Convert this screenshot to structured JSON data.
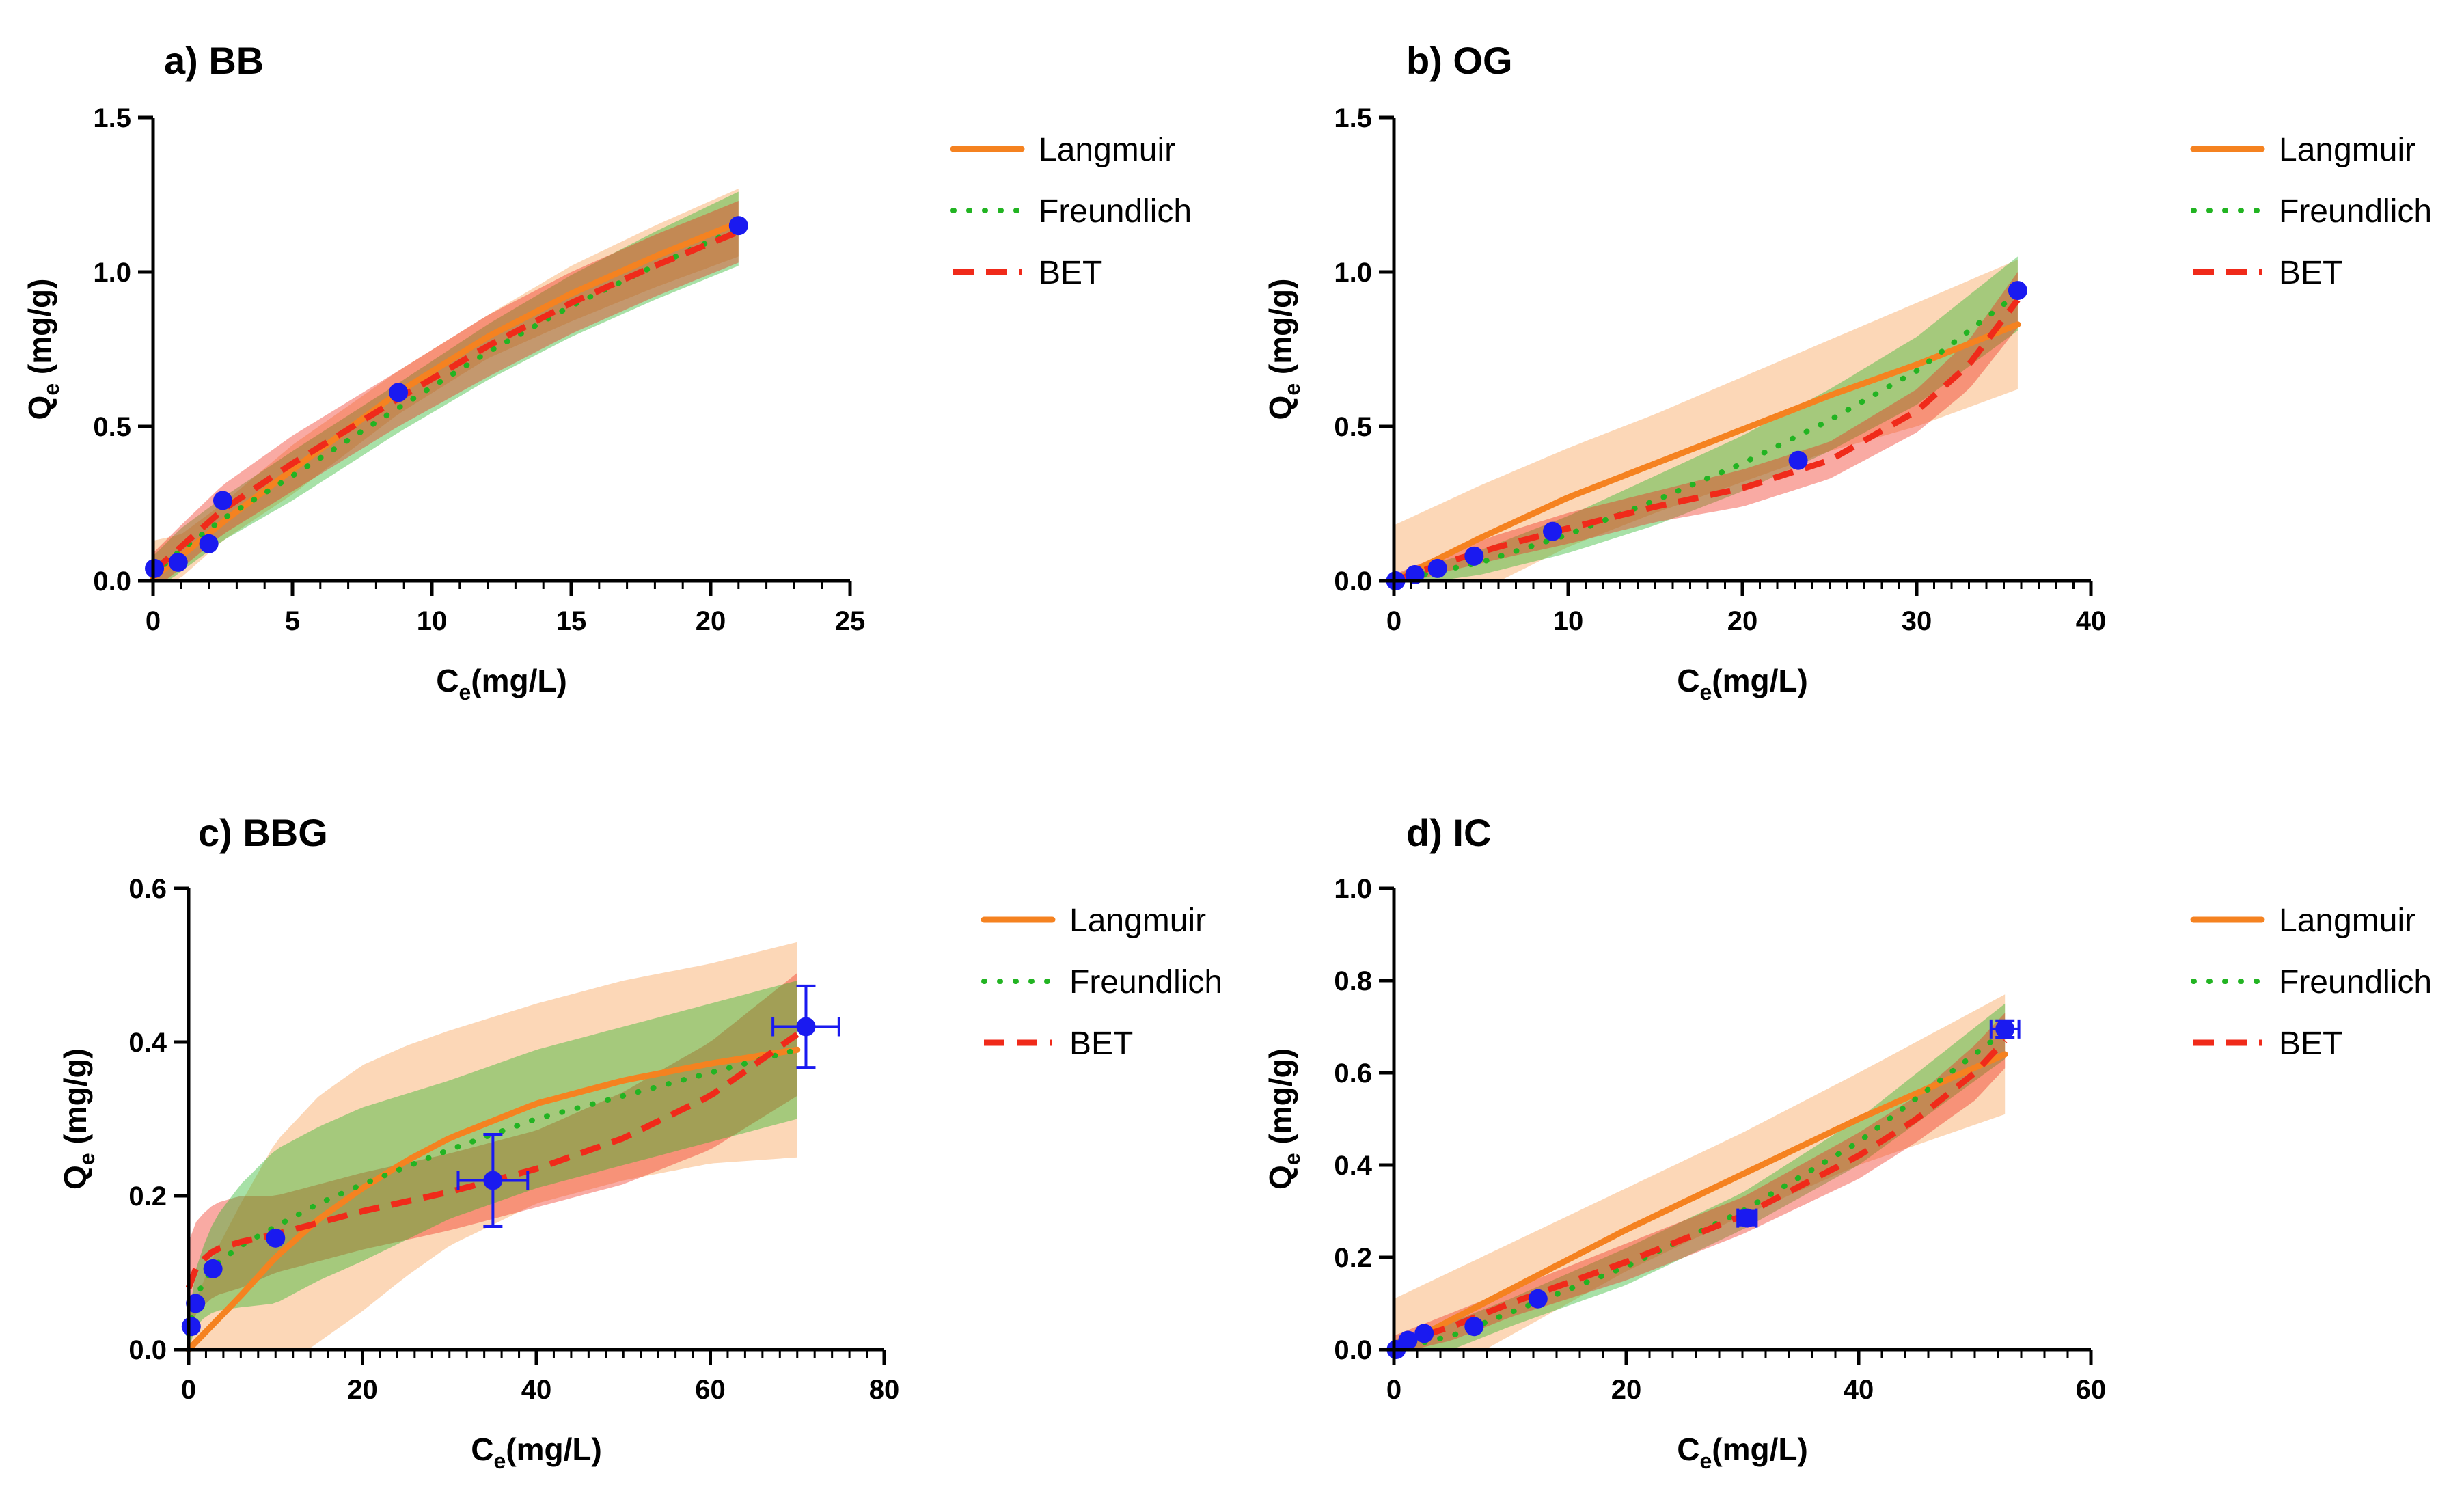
{
  "colors": {
    "langmuir": "#F58220",
    "freundlich": "#22B422",
    "bet": "#F02A1A",
    "points": "#1A1AF0"
  },
  "legend_labels": [
    "Langmuir",
    "Freundlich",
    "BET"
  ],
  "chart_data": [
    {
      "type": "scatter",
      "title": "a) BB",
      "xlabel_main": "C",
      "xlabel_sub": "e",
      "xlabel_unit": "(mg/L)",
      "ylabel_main": "Q",
      "ylabel_sub": "e",
      "ylabel_unit": " (mg/g)",
      "xlim": [
        0,
        25
      ],
      "ylim": [
        0,
        1.5
      ],
      "xticks": [
        0,
        5,
        10,
        15,
        20,
        25
      ],
      "yticks": [
        0,
        0.5,
        1.0,
        1.5
      ],
      "xtick_labels": [
        "0",
        "5",
        "10",
        "15",
        "20",
        "25"
      ],
      "ytick_labels": [
        "0.0",
        "0.5",
        "1.0",
        "1.5"
      ],
      "x_minor_step": 1,
      "points": [
        {
          "x": 0.05,
          "y": 0.04
        },
        {
          "x": 0.9,
          "y": 0.06
        },
        {
          "x": 2.0,
          "y": 0.12
        },
        {
          "x": 2.5,
          "y": 0.26
        },
        {
          "x": 8.8,
          "y": 0.61
        },
        {
          "x": 21.0,
          "y": 1.15
        }
      ],
      "fits": {
        "langmuir": {
          "x": [
            0,
            1,
            2.5,
            5,
            8.8,
            12,
            15,
            18,
            21
          ],
          "y": [
            0.01,
            0.08,
            0.19,
            0.36,
            0.61,
            0.79,
            0.93,
            1.05,
            1.16
          ],
          "band": [
            0.12,
            0.07,
            0.06,
            0.08,
            0.07,
            0.07,
            0.09,
            0.1,
            0.11
          ]
        },
        "freundlich": {
          "x": [
            0,
            1,
            2.5,
            5,
            8.8,
            12,
            15,
            18,
            21
          ],
          "y": [
            0.02,
            0.1,
            0.2,
            0.34,
            0.56,
            0.74,
            0.89,
            1.02,
            1.14
          ],
          "band": [
            0.06,
            0.07,
            0.07,
            0.08,
            0.08,
            0.09,
            0.1,
            0.11,
            0.12
          ]
        },
        "bet": {
          "x": [
            0,
            1,
            2.5,
            5,
            8.8,
            12,
            15,
            18,
            21
          ],
          "y": [
            0.03,
            0.11,
            0.23,
            0.38,
            0.59,
            0.76,
            0.9,
            1.02,
            1.13
          ],
          "band": [
            0.06,
            0.07,
            0.08,
            0.09,
            0.09,
            0.1,
            0.1,
            0.1,
            0.1
          ]
        }
      },
      "band_order": [
        "langmuir",
        "freundlich",
        "bet"
      ]
    },
    {
      "type": "scatter",
      "title": "b) OG",
      "xlabel_main": "C",
      "xlabel_sub": "e",
      "xlabel_unit": "(mg/L)",
      "ylabel_main": "Q",
      "ylabel_sub": "e",
      "ylabel_unit": " (mg/g)",
      "xlim": [
        0,
        40
      ],
      "ylim": [
        0,
        1.5
      ],
      "xticks": [
        0,
        10,
        20,
        30,
        40
      ],
      "yticks": [
        0,
        0.5,
        1.0,
        1.5
      ],
      "xtick_labels": [
        "0",
        "10",
        "20",
        "30",
        "40"
      ],
      "ytick_labels": [
        "0.0",
        "0.5",
        "1.0",
        "1.5"
      ],
      "x_minor_step": 1,
      "points": [
        {
          "x": 0.1,
          "y": 0.0
        },
        {
          "x": 1.2,
          "y": 0.02
        },
        {
          "x": 2.5,
          "y": 0.04
        },
        {
          "x": 4.6,
          "y": 0.08
        },
        {
          "x": 9.1,
          "y": 0.16
        },
        {
          "x": 23.2,
          "y": 0.39
        },
        {
          "x": 35.8,
          "y": 0.94
        }
      ],
      "fits": {
        "langmuir": {
          "x": [
            0,
            5,
            10,
            15,
            20,
            25,
            30,
            35.8
          ],
          "y": [
            0.0,
            0.14,
            0.27,
            0.38,
            0.49,
            0.6,
            0.7,
            0.83
          ],
          "band": [
            0.18,
            0.17,
            0.16,
            0.16,
            0.17,
            0.18,
            0.2,
            0.21
          ]
        },
        "freundlich": {
          "x": [
            0,
            5,
            10,
            15,
            20,
            25,
            30,
            35.8
          ],
          "y": [
            0.0,
            0.06,
            0.15,
            0.26,
            0.38,
            0.52,
            0.68,
            0.93
          ],
          "band": [
            0.02,
            0.04,
            0.06,
            0.08,
            0.09,
            0.1,
            0.11,
            0.12
          ]
        },
        "bet": {
          "x": [
            0,
            3,
            6,
            10,
            15,
            20,
            25,
            30,
            33,
            35.8
          ],
          "y": [
            0.0,
            0.06,
            0.11,
            0.17,
            0.24,
            0.3,
            0.39,
            0.55,
            0.7,
            0.91
          ],
          "band": [
            0.02,
            0.03,
            0.04,
            0.05,
            0.05,
            0.06,
            0.06,
            0.07,
            0.08,
            0.09
          ]
        }
      },
      "band_order": [
        "langmuir",
        "freundlich",
        "bet"
      ]
    },
    {
      "type": "scatter",
      "title": "c) BBG",
      "xlabel_main": "C",
      "xlabel_sub": "e",
      "xlabel_unit": "(mg/L)",
      "ylabel_main": "Q",
      "ylabel_sub": "e",
      "ylabel_unit": " (mg/g)",
      "xlim": [
        0,
        80
      ],
      "ylim": [
        0,
        0.6
      ],
      "xticks": [
        0,
        20,
        40,
        60,
        80
      ],
      "yticks": [
        0,
        0.2,
        0.4,
        0.6
      ],
      "xtick_labels": [
        "0",
        "20",
        "40",
        "60",
        "80"
      ],
      "ytick_labels": [
        "0.0",
        "0.2",
        "0.4",
        "0.6"
      ],
      "x_minor_step": 2,
      "points": [
        {
          "x": 0.3,
          "y": 0.03
        },
        {
          "x": 0.8,
          "y": 0.06
        },
        {
          "x": 2.8,
          "y": 0.105
        },
        {
          "x": 10.0,
          "y": 0.145
        },
        {
          "x": 35.0,
          "y": 0.22,
          "xerr": 4.0,
          "yerr": 0.06
        },
        {
          "x": 71.0,
          "y": 0.42,
          "xerr": 3.8,
          "yerr": 0.053
        }
      ],
      "fits": {
        "langmuir": {
          "x": [
            0,
            3,
            6,
            10,
            15,
            20,
            25,
            30,
            40,
            50,
            60,
            70
          ],
          "y": [
            0.0,
            0.035,
            0.07,
            0.12,
            0.17,
            0.21,
            0.245,
            0.275,
            0.32,
            0.35,
            0.372,
            0.39
          ],
          "band": [
            0.04,
            0.09,
            0.12,
            0.15,
            0.16,
            0.16,
            0.15,
            0.14,
            0.13,
            0.13,
            0.13,
            0.14
          ]
        },
        "freundlich": {
          "x": [
            0,
            1,
            3,
            6,
            10,
            15,
            20,
            30,
            40,
            50,
            60,
            70
          ],
          "y": [
            0.02,
            0.075,
            0.11,
            0.135,
            0.16,
            0.19,
            0.215,
            0.26,
            0.3,
            0.33,
            0.36,
            0.39
          ],
          "band": [
            0.02,
            0.04,
            0.06,
            0.08,
            0.1,
            0.1,
            0.1,
            0.09,
            0.09,
            0.09,
            0.09,
            0.09
          ]
        },
        "bet": {
          "x": [
            0,
            1,
            3,
            6,
            10,
            15,
            20,
            30,
            40,
            50,
            60,
            70
          ],
          "y": [
            0.08,
            0.11,
            0.13,
            0.14,
            0.15,
            0.165,
            0.18,
            0.205,
            0.235,
            0.275,
            0.33,
            0.41
          ],
          "band": [
            0.06,
            0.06,
            0.06,
            0.06,
            0.05,
            0.05,
            0.05,
            0.05,
            0.05,
            0.06,
            0.07,
            0.08
          ]
        }
      },
      "band_order": [
        "langmuir",
        "bet",
        "freundlich"
      ]
    },
    {
      "type": "scatter",
      "title": "d) IC",
      "xlabel_main": "C",
      "xlabel_sub": "e",
      "xlabel_unit": "(mg/L)",
      "ylabel_main": "Q",
      "ylabel_sub": "e",
      "ylabel_unit": " (mg/g)",
      "xlim": [
        0,
        60
      ],
      "ylim": [
        0,
        1.0
      ],
      "xticks": [
        0,
        20,
        40,
        60
      ],
      "yticks": [
        0,
        0.2,
        0.4,
        0.6,
        0.8,
        1.0
      ],
      "xtick_labels": [
        "0",
        "20",
        "40",
        "60"
      ],
      "ytick_labels": [
        "0.0",
        "0.2",
        "0.4",
        "0.6",
        "0.8",
        "1.0"
      ],
      "x_minor_step": 2,
      "points": [
        {
          "x": 0.2,
          "y": 0.0
        },
        {
          "x": 1.2,
          "y": 0.02
        },
        {
          "x": 2.6,
          "y": 0.035
        },
        {
          "x": 6.9,
          "y": 0.05
        },
        {
          "x": 12.4,
          "y": 0.11
        },
        {
          "x": 30.4,
          "y": 0.285,
          "xerr": 0.8,
          "yerr": 0.015
        },
        {
          "x": 52.6,
          "y": 0.695,
          "xerr": 1.2,
          "yerr": 0.018
        }
      ],
      "fits": {
        "langmuir": {
          "x": [
            0,
            10,
            20,
            30,
            40,
            52.6
          ],
          "y": [
            0.0,
            0.13,
            0.26,
            0.38,
            0.5,
            0.64
          ],
          "band": [
            0.11,
            0.1,
            0.09,
            0.09,
            0.1,
            0.13
          ]
        },
        "freundlich": {
          "x": [
            0,
            5,
            10,
            20,
            30,
            40,
            52.6
          ],
          "y": [
            0.0,
            0.03,
            0.08,
            0.18,
            0.3,
            0.45,
            0.69
          ],
          "band": [
            0.02,
            0.03,
            0.03,
            0.04,
            0.04,
            0.05,
            0.06
          ]
        },
        "bet": {
          "x": [
            0,
            5,
            10,
            20,
            30,
            40,
            45,
            50,
            52.6
          ],
          "y": [
            0.01,
            0.05,
            0.1,
            0.19,
            0.29,
            0.42,
            0.5,
            0.6,
            0.67
          ],
          "band": [
            0.02,
            0.03,
            0.03,
            0.04,
            0.04,
            0.05,
            0.05,
            0.06,
            0.06
          ]
        }
      },
      "band_order": [
        "langmuir",
        "freundlich",
        "bet"
      ]
    }
  ]
}
